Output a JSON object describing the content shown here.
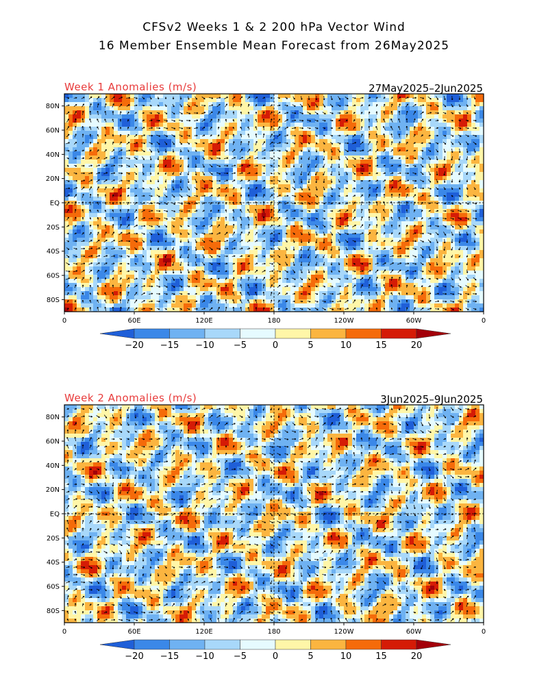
{
  "title_line1": "CFSv2 Weeks 1 & 2 200 hPa Vector Wind",
  "title_line2": "16 Member Ensemble Mean Forecast from 26May2025",
  "panels": [
    {
      "label": "Week 1 Anomalies (m/s)",
      "dates": "27May2025–2Jun2025",
      "lat_ticks": [
        "80N",
        "60N",
        "40N",
        "20N",
        "EQ",
        "20S",
        "40S",
        "60S",
        "80S"
      ],
      "lon_ticks": [
        "0",
        "60E",
        "120E",
        "180",
        "120W",
        "60W",
        "0"
      ]
    },
    {
      "label": "Week 2 Anomalies (m/s)",
      "dates": "3Jun2025–9Jun2025",
      "lat_ticks": [
        "80N",
        "60N",
        "40N",
        "20N",
        "EQ",
        "20S",
        "40S",
        "60S",
        "80S"
      ],
      "lon_ticks": [
        "0",
        "60E",
        "120E",
        "180",
        "120W",
        "60W",
        "0"
      ]
    }
  ],
  "colorbar": {
    "labels": [
      "−20",
      "−15",
      "−10",
      "−5",
      "0",
      "5",
      "10",
      "15",
      "20"
    ],
    "colors": [
      "#1f5fd8",
      "#3b88e8",
      "#6fb2f2",
      "#a8d8fa",
      "#e6fbff",
      "#fff6a8",
      "#fbb540",
      "#f56b0a",
      "#d51b06",
      "#a3000a"
    ]
  },
  "colors": {
    "title_red": "#e83a3a",
    "anomaly_scale": [
      {
        "v": -20,
        "c": "#1f5fd8"
      },
      {
        "v": -15,
        "c": "#3b88e8"
      },
      {
        "v": -10,
        "c": "#6fb2f2"
      },
      {
        "v": -5,
        "c": "#a8d8fa"
      },
      {
        "v": 0,
        "c": "#e6fbff"
      },
      {
        "v": 2.5,
        "c": "#fff6a8"
      },
      {
        "v": 5,
        "c": "#fbb540"
      },
      {
        "v": 10,
        "c": "#f56b0a"
      },
      {
        "v": 15,
        "c": "#d51b06"
      },
      {
        "v": 20,
        "c": "#a3000a"
      }
    ]
  }
}
